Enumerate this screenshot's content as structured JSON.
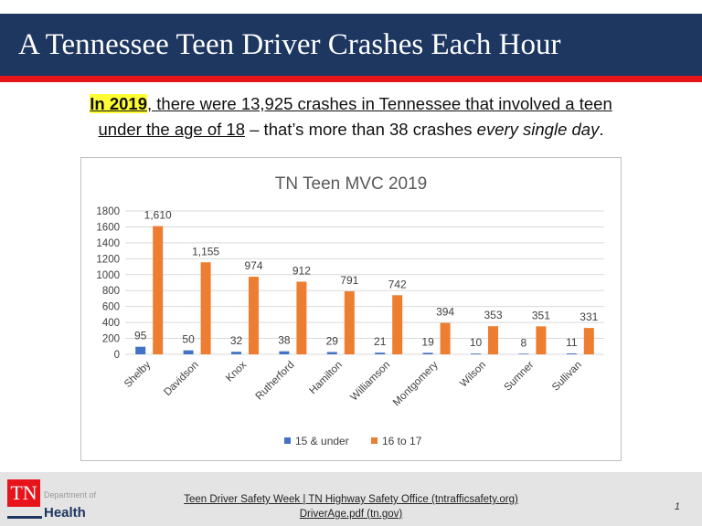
{
  "title": "A Tennessee Teen Driver Crashes Each Hour",
  "intro": {
    "highlight": "In 2019",
    "line1": ", there were 13,925 crashes in Tennessee  that involved a teen",
    "line2_underlined": "under the age of 18",
    "line2_rest": " – that’s more than 38 crashes ",
    "line2_italic": "every single day",
    "line2_end": "."
  },
  "chart_data": {
    "type": "bar",
    "title": "TN Teen MVC 2019",
    "categories": [
      "Shelby",
      "Davidson",
      "Knox",
      "Rutherford",
      "Hamilton",
      "Williamson",
      "Montgomery",
      "Wilson",
      "Sumner",
      "Sullivan"
    ],
    "series": [
      {
        "name": "15 & under",
        "color": "#4472c4",
        "values": [
          95,
          50,
          32,
          38,
          29,
          21,
          19,
          10,
          8,
          11
        ],
        "labels": [
          "95",
          "50",
          "32",
          "38",
          "29",
          "21",
          "19",
          "10",
          "8",
          "11"
        ]
      },
      {
        "name": "16 to 17",
        "color": "#ed7d31",
        "values": [
          1610,
          1155,
          974,
          912,
          791,
          742,
          394,
          353,
          351,
          331
        ],
        "labels": [
          "1,610",
          "1,155",
          "974",
          "912",
          "791",
          "742",
          "394",
          "353",
          "351",
          "331"
        ]
      }
    ],
    "ylim": [
      0,
      1800
    ],
    "yticks": [
      0,
      200,
      400,
      600,
      800,
      1000,
      1200,
      1400,
      1600,
      1800
    ],
    "grid": true,
    "legend": "bottom"
  },
  "footer": {
    "logo_tn": "TN",
    "logo_dept": "Department of",
    "logo_health": "Health",
    "source1": "Teen Driver Safety Week  | TN Highway Safety Office (tntrafficsafety.org)",
    "source2": "DriverAge.pdf (tn.gov)",
    "page": "1"
  }
}
